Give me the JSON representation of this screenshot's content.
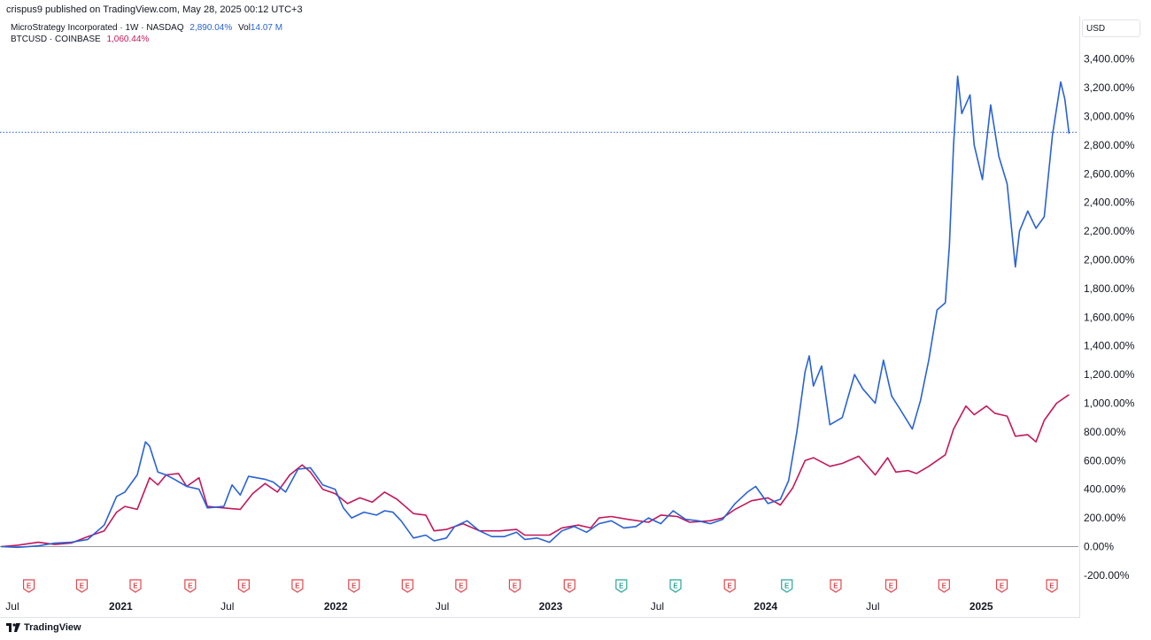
{
  "header": {
    "publisher": "crispus9 published on TradingView.com, May 28, 2025 00:12 UTC+3"
  },
  "legend": {
    "rows": [
      {
        "label": "MicroStrategy Incorporated · 1W · NASDAQ",
        "value": "2,890.04%",
        "extra_label": "Vol",
        "extra_value": "14.07 M",
        "color": "#2962d4"
      },
      {
        "label": "BTCUSD · COINBASE",
        "value": "1,060.44%",
        "color": "#c2185b"
      }
    ]
  },
  "currency": "USD",
  "footer": {
    "brand": "TradingView"
  },
  "chart_data": {
    "type": "line",
    "y_unit": "%",
    "ylim": [
      -250,
      3500
    ],
    "y_ticks": [
      "-200.00%",
      "0.00%",
      "200.00%",
      "400.00%",
      "600.00%",
      "800.00%",
      "1,000.00%",
      "1,200.00%",
      "1,400.00%",
      "1,600.00%",
      "1,800.00%",
      "2,000.00%",
      "2,200.00%",
      "2,400.00%",
      "2,600.00%",
      "2,800.00%",
      "3,000.00%",
      "3,200.00%",
      "3,400.00%"
    ],
    "y_tick_values": [
      -200,
      0,
      200,
      400,
      600,
      800,
      1000,
      1200,
      1400,
      1600,
      1800,
      2000,
      2200,
      2400,
      2600,
      2800,
      3000,
      3200,
      3400
    ],
    "xlim": [
      "2020-06-10",
      "2025-06-15"
    ],
    "x_ticks": [
      {
        "label": "Jul",
        "date": "2020-07-01",
        "bold": false
      },
      {
        "label": "2021",
        "date": "2021-01-01",
        "bold": true
      },
      {
        "label": "Jul",
        "date": "2021-07-01",
        "bold": false
      },
      {
        "label": "2022",
        "date": "2022-01-01",
        "bold": true
      },
      {
        "label": "Jul",
        "date": "2022-07-01",
        "bold": false
      },
      {
        "label": "2023",
        "date": "2023-01-01",
        "bold": true
      },
      {
        "label": "Jul",
        "date": "2023-07-01",
        "bold": false
      },
      {
        "label": "2024",
        "date": "2024-01-01",
        "bold": true
      },
      {
        "label": "Jul",
        "date": "2024-07-01",
        "bold": false
      },
      {
        "label": "2025",
        "date": "2025-01-01",
        "bold": true
      }
    ],
    "current_level": 2890.04,
    "earnings_markers": [
      {
        "date": "2020-07-29",
        "type": "E",
        "color": "#e0474c"
      },
      {
        "date": "2020-10-27",
        "type": "E",
        "color": "#e0474c"
      },
      {
        "date": "2021-01-26",
        "type": "E",
        "color": "#e0474c"
      },
      {
        "date": "2021-04-29",
        "type": "E",
        "color": "#e0474c"
      },
      {
        "date": "2021-07-29",
        "type": "E",
        "color": "#e0474c"
      },
      {
        "date": "2021-10-28",
        "type": "E",
        "color": "#e0474c"
      },
      {
        "date": "2022-02-01",
        "type": "E",
        "color": "#e0474c"
      },
      {
        "date": "2022-05-03",
        "type": "E",
        "color": "#e0474c"
      },
      {
        "date": "2022-08-02",
        "type": "E",
        "color": "#e0474c"
      },
      {
        "date": "2022-11-01",
        "type": "E",
        "color": "#e0474c"
      },
      {
        "date": "2023-02-02",
        "type": "E",
        "color": "#e0474c"
      },
      {
        "date": "2023-05-01",
        "type": "E",
        "color": "#26a69a"
      },
      {
        "date": "2023-08-01",
        "type": "E",
        "color": "#26a69a"
      },
      {
        "date": "2023-11-01",
        "type": "E",
        "color": "#e0474c"
      },
      {
        "date": "2024-02-06",
        "type": "E",
        "color": "#26a69a"
      },
      {
        "date": "2024-04-29",
        "type": "E",
        "color": "#e0474c"
      },
      {
        "date": "2024-08-01",
        "type": "E",
        "color": "#e0474c"
      },
      {
        "date": "2024-10-30",
        "type": "E",
        "color": "#e0474c"
      },
      {
        "date": "2025-02-05",
        "type": "E",
        "color": "#e0474c"
      },
      {
        "date": "2025-05-01",
        "type": "E",
        "color": "#e0474c"
      }
    ],
    "series": [
      {
        "name": "MicroStrategy Incorporated",
        "color": "#2962d4",
        "points": [
          [
            "2020-06-12",
            0
          ],
          [
            "2020-07-10",
            -5
          ],
          [
            "2020-08-14",
            5
          ],
          [
            "2020-09-11",
            25
          ],
          [
            "2020-10-09",
            30
          ],
          [
            "2020-11-06",
            50
          ],
          [
            "2020-12-04",
            150
          ],
          [
            "2020-12-25",
            350
          ],
          [
            "2021-01-08",
            380
          ],
          [
            "2021-01-29",
            500
          ],
          [
            "2021-02-12",
            730
          ],
          [
            "2021-02-19",
            700
          ],
          [
            "2021-03-05",
            520
          ],
          [
            "2021-03-19",
            500
          ],
          [
            "2021-04-02",
            470
          ],
          [
            "2021-04-23",
            420
          ],
          [
            "2021-05-14",
            400
          ],
          [
            "2021-05-28",
            270
          ],
          [
            "2021-06-25",
            280
          ],
          [
            "2021-07-09",
            430
          ],
          [
            "2021-07-23",
            360
          ],
          [
            "2021-08-06",
            490
          ],
          [
            "2021-09-03",
            470
          ],
          [
            "2021-09-17",
            450
          ],
          [
            "2021-10-08",
            380
          ],
          [
            "2021-10-29",
            540
          ],
          [
            "2021-11-19",
            550
          ],
          [
            "2021-12-10",
            430
          ],
          [
            "2021-12-31",
            400
          ],
          [
            "2022-01-14",
            270
          ],
          [
            "2022-01-28",
            200
          ],
          [
            "2022-02-18",
            240
          ],
          [
            "2022-03-11",
            220
          ],
          [
            "2022-03-25",
            250
          ],
          [
            "2022-04-08",
            240
          ],
          [
            "2022-04-22",
            180
          ],
          [
            "2022-05-13",
            60
          ],
          [
            "2022-06-03",
            80
          ],
          [
            "2022-06-17",
            40
          ],
          [
            "2022-07-08",
            60
          ],
          [
            "2022-07-22",
            140
          ],
          [
            "2022-08-12",
            180
          ],
          [
            "2022-09-02",
            110
          ],
          [
            "2022-09-23",
            70
          ],
          [
            "2022-10-14",
            70
          ],
          [
            "2022-11-04",
            100
          ],
          [
            "2022-11-18",
            50
          ],
          [
            "2022-12-09",
            60
          ],
          [
            "2022-12-30",
            30
          ],
          [
            "2023-01-20",
            110
          ],
          [
            "2023-02-10",
            140
          ],
          [
            "2023-03-03",
            100
          ],
          [
            "2023-03-24",
            160
          ],
          [
            "2023-04-14",
            180
          ],
          [
            "2023-05-05",
            130
          ],
          [
            "2023-05-26",
            140
          ],
          [
            "2023-06-16",
            200
          ],
          [
            "2023-07-07",
            160
          ],
          [
            "2023-07-28",
            250
          ],
          [
            "2023-08-18",
            190
          ],
          [
            "2023-09-08",
            180
          ],
          [
            "2023-09-29",
            160
          ],
          [
            "2023-10-20",
            190
          ],
          [
            "2023-11-10",
            300
          ],
          [
            "2023-12-01",
            380
          ],
          [
            "2023-12-15",
            420
          ],
          [
            "2024-01-05",
            300
          ],
          [
            "2024-01-26",
            330
          ],
          [
            "2024-02-09",
            460
          ],
          [
            "2024-02-23",
            800
          ],
          [
            "2024-03-08",
            1220
          ],
          [
            "2024-03-15",
            1330
          ],
          [
            "2024-03-22",
            1120
          ],
          [
            "2024-04-05",
            1260
          ],
          [
            "2024-04-19",
            850
          ],
          [
            "2024-05-10",
            900
          ],
          [
            "2024-05-31",
            1200
          ],
          [
            "2024-06-14",
            1100
          ],
          [
            "2024-07-05",
            1000
          ],
          [
            "2024-07-19",
            1300
          ],
          [
            "2024-08-02",
            1050
          ],
          [
            "2024-08-16",
            960
          ],
          [
            "2024-09-06",
            820
          ],
          [
            "2024-09-20",
            1020
          ],
          [
            "2024-10-04",
            1300
          ],
          [
            "2024-10-18",
            1650
          ],
          [
            "2024-11-01",
            1700
          ],
          [
            "2024-11-08",
            2100
          ],
          [
            "2024-11-15",
            2800
          ],
          [
            "2024-11-22",
            3280
          ],
          [
            "2024-11-29",
            3020
          ],
          [
            "2024-12-13",
            3150
          ],
          [
            "2024-12-20",
            2800
          ],
          [
            "2025-01-03",
            2560
          ],
          [
            "2025-01-17",
            3080
          ],
          [
            "2025-01-31",
            2720
          ],
          [
            "2025-02-14",
            2530
          ],
          [
            "2025-02-28",
            1950
          ],
          [
            "2025-03-07",
            2200
          ],
          [
            "2025-03-21",
            2340
          ],
          [
            "2025-04-04",
            2220
          ],
          [
            "2025-04-18",
            2300
          ],
          [
            "2025-05-02",
            2870
          ],
          [
            "2025-05-16",
            3240
          ],
          [
            "2025-05-23",
            3120
          ],
          [
            "2025-05-30",
            2880
          ]
        ]
      },
      {
        "name": "BTCUSD",
        "color": "#c2185b",
        "points": [
          [
            "2020-06-12",
            0
          ],
          [
            "2020-07-10",
            10
          ],
          [
            "2020-08-14",
            30
          ],
          [
            "2020-09-11",
            15
          ],
          [
            "2020-10-09",
            25
          ],
          [
            "2020-11-06",
            70
          ],
          [
            "2020-12-04",
            110
          ],
          [
            "2020-12-25",
            240
          ],
          [
            "2021-01-08",
            280
          ],
          [
            "2021-01-29",
            260
          ],
          [
            "2021-02-19",
            480
          ],
          [
            "2021-03-05",
            430
          ],
          [
            "2021-03-19",
            500
          ],
          [
            "2021-04-09",
            510
          ],
          [
            "2021-04-23",
            420
          ],
          [
            "2021-05-14",
            480
          ],
          [
            "2021-05-28",
            280
          ],
          [
            "2021-06-25",
            270
          ],
          [
            "2021-07-23",
            260
          ],
          [
            "2021-08-13",
            370
          ],
          [
            "2021-09-03",
            440
          ],
          [
            "2021-09-24",
            380
          ],
          [
            "2021-10-15",
            500
          ],
          [
            "2021-11-05",
            570
          ],
          [
            "2021-11-19",
            520
          ],
          [
            "2021-12-10",
            400
          ],
          [
            "2021-12-31",
            370
          ],
          [
            "2022-01-21",
            300
          ],
          [
            "2022-02-11",
            340
          ],
          [
            "2022-03-04",
            310
          ],
          [
            "2022-03-25",
            380
          ],
          [
            "2022-04-15",
            330
          ],
          [
            "2022-05-13",
            230
          ],
          [
            "2022-06-03",
            220
          ],
          [
            "2022-06-17",
            110
          ],
          [
            "2022-07-08",
            120
          ],
          [
            "2022-08-05",
            160
          ],
          [
            "2022-09-02",
            110
          ],
          [
            "2022-10-07",
            110
          ],
          [
            "2022-11-04",
            120
          ],
          [
            "2022-11-18",
            80
          ],
          [
            "2022-12-30",
            80
          ],
          [
            "2023-01-20",
            130
          ],
          [
            "2023-02-17",
            150
          ],
          [
            "2023-03-10",
            130
          ],
          [
            "2023-03-24",
            200
          ],
          [
            "2023-04-14",
            210
          ],
          [
            "2023-05-12",
            190
          ],
          [
            "2023-06-16",
            170
          ],
          [
            "2023-07-07",
            220
          ],
          [
            "2023-08-04",
            210
          ],
          [
            "2023-08-25",
            170
          ],
          [
            "2023-09-29",
            180
          ],
          [
            "2023-10-20",
            200
          ],
          [
            "2023-11-10",
            260
          ],
          [
            "2023-12-08",
            320
          ],
          [
            "2024-01-05",
            340
          ],
          [
            "2024-01-26",
            290
          ],
          [
            "2024-02-16",
            410
          ],
          [
            "2024-03-08",
            600
          ],
          [
            "2024-03-22",
            620
          ],
          [
            "2024-04-19",
            560
          ],
          [
            "2024-05-10",
            580
          ],
          [
            "2024-06-07",
            630
          ],
          [
            "2024-07-05",
            500
          ],
          [
            "2024-07-26",
            620
          ],
          [
            "2024-08-09",
            520
          ],
          [
            "2024-08-30",
            530
          ],
          [
            "2024-09-13",
            510
          ],
          [
            "2024-10-04",
            560
          ],
          [
            "2024-10-18",
            600
          ],
          [
            "2024-11-01",
            640
          ],
          [
            "2024-11-15",
            820
          ],
          [
            "2024-12-06",
            980
          ],
          [
            "2024-12-20",
            920
          ],
          [
            "2025-01-10",
            980
          ],
          [
            "2025-01-24",
            930
          ],
          [
            "2025-02-14",
            910
          ],
          [
            "2025-02-28",
            770
          ],
          [
            "2025-03-21",
            780
          ],
          [
            "2025-04-04",
            730
          ],
          [
            "2025-04-18",
            880
          ],
          [
            "2025-05-09",
            1000
          ],
          [
            "2025-05-30",
            1060
          ]
        ]
      }
    ]
  }
}
